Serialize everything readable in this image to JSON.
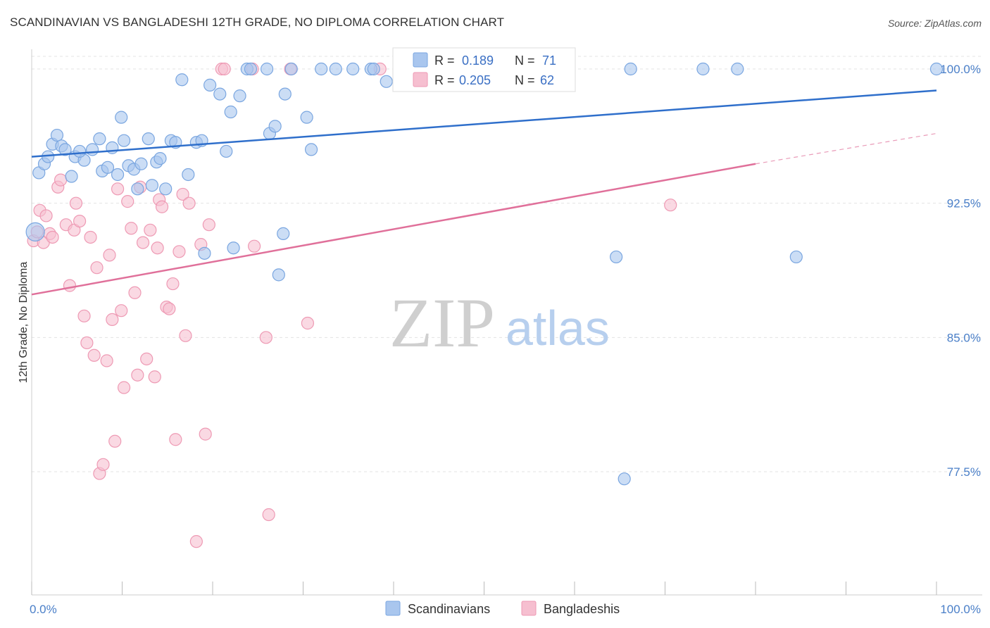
{
  "title": "SCANDINAVIAN VS BANGLADESHI 12TH GRADE, NO DIPLOMA CORRELATION CHART",
  "source": "Source: ZipAtlas.com",
  "watermark": {
    "zip": "ZIP",
    "atlas": "atlas"
  },
  "colors": {
    "blue_fill": "#a9c6ee",
    "blue_stroke": "#7aa6e0",
    "blue_line": "#2f6fcb",
    "pink_fill": "#f6bfd0",
    "pink_stroke": "#ee9ab4",
    "pink_line": "#e0709a",
    "grid": "#e3e3e3",
    "tick_text": "#4a7fc8"
  },
  "legend": {
    "rows": [
      {
        "r_label": "R =",
        "r_value": "0.189",
        "n_label": "N =",
        "n_value": "71"
      },
      {
        "r_label": "R =",
        "r_value": "0.205",
        "n_label": "N =",
        "n_value": "62"
      }
    ]
  },
  "bottom_legend": [
    "Scandinavians",
    "Bangladeshis"
  ],
  "chart_data": {
    "type": "scatter",
    "ylabel": "12th Grade, No Diploma",
    "xlim": [
      0,
      100
    ],
    "ylim": [
      71.5,
      101.5
    ],
    "x_ticks": [
      0,
      10,
      20,
      30,
      40,
      50,
      60,
      70,
      80,
      90,
      100
    ],
    "x_tick_labels": {
      "left": "0.0%",
      "right": "100.0%"
    },
    "y_ticks": [
      77.5,
      85.0,
      92.5,
      100.0
    ],
    "y_tick_labels": [
      "77.5%",
      "85.0%",
      "92.5%",
      "100.0%"
    ],
    "grid": true,
    "series": [
      {
        "name": "Scandinavians",
        "r": 0.189,
        "n": 71,
        "trend": {
          "x0": 0,
          "y0": 95.1,
          "x1": 100,
          "y1": 98.8
        },
        "points": [
          [
            0.4,
            90.9
          ],
          [
            0.8,
            94.2
          ],
          [
            1.4,
            94.7
          ],
          [
            1.8,
            95.1
          ],
          [
            2.3,
            95.8
          ],
          [
            2.8,
            96.3
          ],
          [
            3.3,
            95.7
          ],
          [
            3.7,
            95.5
          ],
          [
            4.4,
            94.0
          ],
          [
            4.8,
            95.1
          ],
          [
            5.8,
            94.9
          ],
          [
            5.3,
            95.4
          ],
          [
            6.7,
            95.5
          ],
          [
            7.5,
            96.1
          ],
          [
            7.8,
            94.3
          ],
          [
            8.4,
            94.5
          ],
          [
            8.9,
            95.6
          ],
          [
            9.5,
            94.1
          ],
          [
            9.9,
            97.3
          ],
          [
            10.2,
            96.0
          ],
          [
            10.7,
            94.6
          ],
          [
            11.3,
            94.4
          ],
          [
            11.7,
            93.3
          ],
          [
            12.1,
            94.7
          ],
          [
            12.9,
            96.1
          ],
          [
            13.3,
            93.5
          ],
          [
            13.8,
            94.8
          ],
          [
            14.2,
            95.0
          ],
          [
            14.8,
            93.3
          ],
          [
            15.4,
            96.0
          ],
          [
            15.9,
            95.9
          ],
          [
            16.6,
            99.4
          ],
          [
            17.3,
            94.1
          ],
          [
            18.2,
            95.9
          ],
          [
            18.8,
            96.0
          ],
          [
            19.1,
            89.7
          ],
          [
            19.7,
            99.1
          ],
          [
            20.8,
            98.6
          ],
          [
            21.5,
            95.4
          ],
          [
            22.0,
            97.6
          ],
          [
            22.3,
            90.0
          ],
          [
            23.0,
            98.5
          ],
          [
            23.8,
            100.0
          ],
          [
            24.2,
            100.0
          ],
          [
            26.0,
            100.0
          ],
          [
            26.3,
            96.4
          ],
          [
            26.9,
            96.8
          ],
          [
            27.3,
            88.5
          ],
          [
            27.8,
            90.8
          ],
          [
            28.0,
            98.6
          ],
          [
            28.7,
            100.0
          ],
          [
            30.4,
            97.3
          ],
          [
            30.9,
            95.5
          ],
          [
            32.0,
            100.0
          ],
          [
            33.6,
            100.0
          ],
          [
            35.5,
            100.0
          ],
          [
            37.5,
            100.0
          ],
          [
            37.8,
            100.0
          ],
          [
            39.2,
            99.3
          ],
          [
            42.5,
            100.0
          ],
          [
            43.3,
            100.0
          ],
          [
            47.5,
            100.0
          ],
          [
            51.0,
            100.0
          ],
          [
            51.8,
            100.0
          ],
          [
            64.6,
            89.5
          ],
          [
            65.5,
            77.1
          ],
          [
            66.2,
            100.0
          ],
          [
            74.2,
            100.0
          ],
          [
            78.0,
            100.0
          ],
          [
            84.5,
            89.5
          ],
          [
            100.0,
            100.0
          ]
        ]
      },
      {
        "name": "Bangladeshis",
        "r": 0.205,
        "n": 62,
        "trend": {
          "x0": 0,
          "y0": 87.4,
          "x1": 80,
          "y1": 94.7,
          "dash_x1": 100,
          "dash_y1": 96.4
        },
        "points": [
          [
            0.2,
            90.4
          ],
          [
            0.6,
            90.9
          ],
          [
            0.9,
            92.1
          ],
          [
            1.3,
            90.3
          ],
          [
            1.6,
            91.8
          ],
          [
            2.0,
            90.8
          ],
          [
            2.3,
            90.6
          ],
          [
            2.9,
            93.4
          ],
          [
            3.2,
            93.8
          ],
          [
            3.8,
            91.3
          ],
          [
            4.2,
            87.9
          ],
          [
            4.7,
            91.0
          ],
          [
            4.9,
            92.5
          ],
          [
            5.3,
            91.5
          ],
          [
            5.8,
            86.2
          ],
          [
            6.1,
            84.7
          ],
          [
            6.5,
            90.6
          ],
          [
            6.9,
            84.0
          ],
          [
            7.2,
            88.9
          ],
          [
            7.5,
            77.4
          ],
          [
            7.9,
            77.9
          ],
          [
            8.3,
            83.7
          ],
          [
            8.6,
            89.6
          ],
          [
            8.9,
            86.0
          ],
          [
            9.2,
            79.2
          ],
          [
            9.5,
            93.3
          ],
          [
            9.9,
            86.5
          ],
          [
            10.2,
            82.2
          ],
          [
            10.6,
            92.6
          ],
          [
            11.0,
            91.1
          ],
          [
            11.4,
            87.5
          ],
          [
            11.7,
            82.9
          ],
          [
            12.0,
            93.4
          ],
          [
            12.3,
            90.3
          ],
          [
            12.7,
            83.8
          ],
          [
            13.1,
            91.0
          ],
          [
            13.6,
            82.8
          ],
          [
            13.9,
            90.0
          ],
          [
            14.1,
            92.7
          ],
          [
            14.4,
            92.3
          ],
          [
            14.9,
            86.7
          ],
          [
            15.2,
            86.6
          ],
          [
            15.6,
            88.0
          ],
          [
            15.9,
            79.3
          ],
          [
            16.3,
            89.8
          ],
          [
            16.7,
            93.0
          ],
          [
            17.0,
            85.1
          ],
          [
            17.4,
            92.5
          ],
          [
            18.2,
            73.6
          ],
          [
            18.7,
            90.2
          ],
          [
            19.2,
            79.6
          ],
          [
            19.6,
            91.3
          ],
          [
            21.0,
            100.0
          ],
          [
            21.3,
            100.0
          ],
          [
            24.4,
            100.0
          ],
          [
            24.6,
            90.1
          ],
          [
            25.9,
            85.0
          ],
          [
            26.2,
            75.1
          ],
          [
            28.6,
            100.0
          ],
          [
            30.5,
            85.8
          ],
          [
            38.5,
            100.0
          ],
          [
            70.6,
            92.4
          ]
        ]
      }
    ]
  }
}
